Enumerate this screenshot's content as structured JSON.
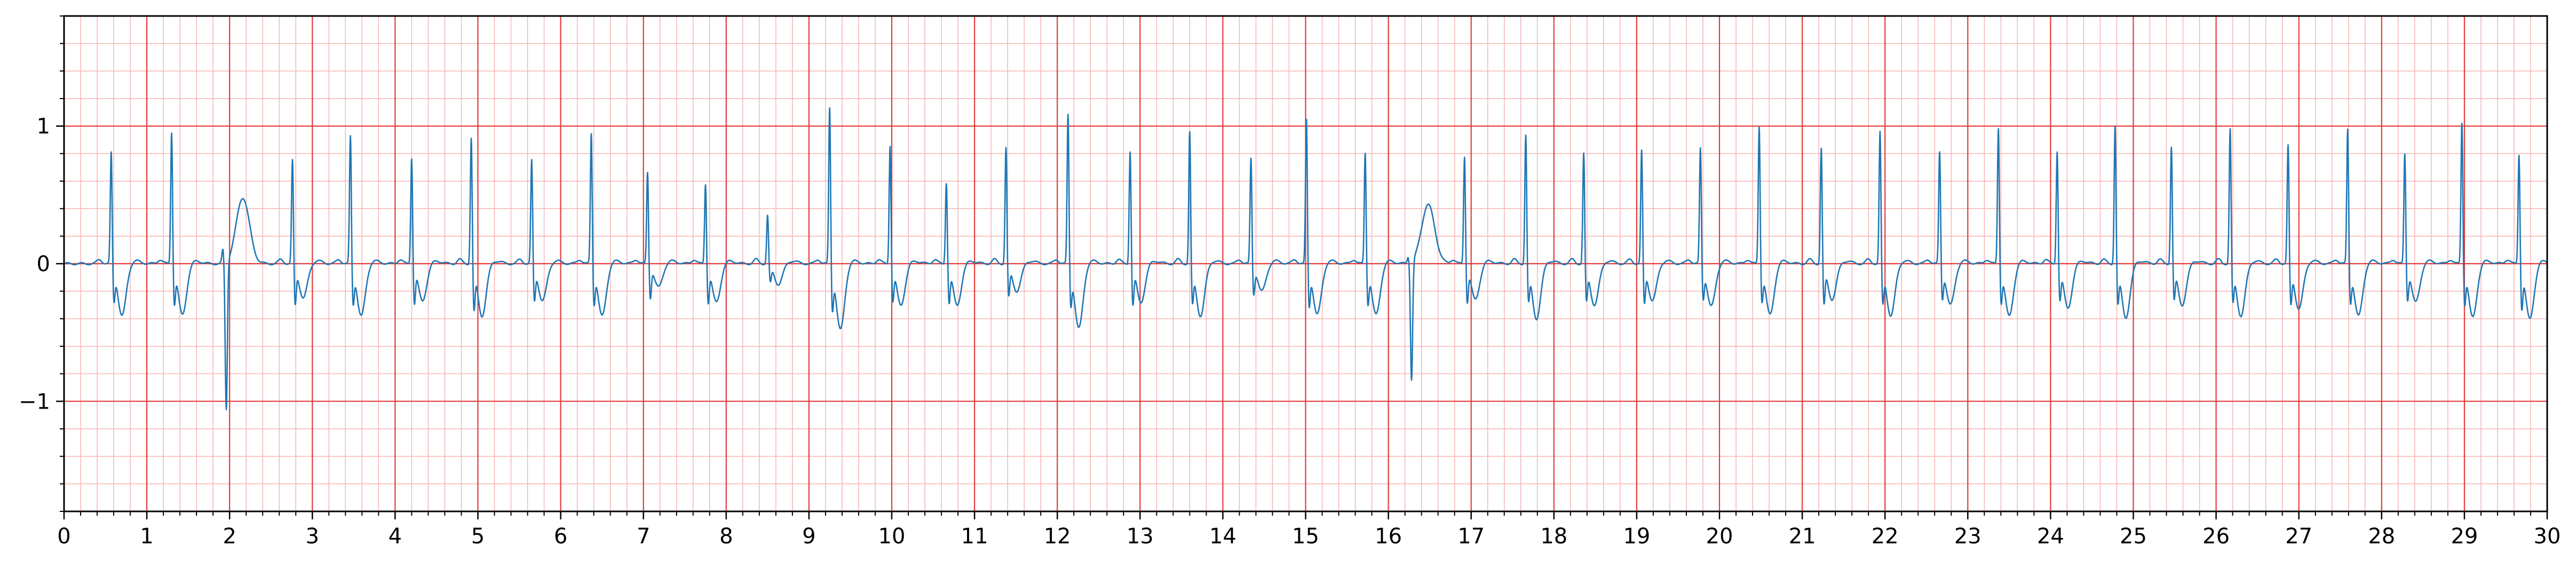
{
  "chart_data": {
    "type": "line",
    "title": "",
    "xlabel": "",
    "ylabel": "",
    "xlim": [
      0,
      30
    ],
    "ylim": [
      -1.8,
      1.8
    ],
    "x_ticks": [
      0,
      1,
      2,
      3,
      4,
      5,
      6,
      7,
      8,
      9,
      10,
      11,
      12,
      13,
      14,
      15,
      16,
      17,
      18,
      19,
      20,
      21,
      22,
      23,
      24,
      25,
      26,
      27,
      28,
      29,
      30
    ],
    "x_tick_labels": [
      "0",
      "1",
      "2",
      "3",
      "4",
      "5",
      "6",
      "7",
      "8",
      "9",
      "10",
      "11",
      "12",
      "13",
      "14",
      "15",
      "16",
      "17",
      "18",
      "19",
      "20",
      "21",
      "22",
      "23",
      "24",
      "25",
      "26",
      "27",
      "28",
      "29",
      "30"
    ],
    "y_ticks": [
      -1,
      0,
      1
    ],
    "y_tick_labels": [
      "−1",
      "0",
      "1"
    ],
    "grid": "on",
    "grid_major_x": 1.0,
    "grid_major_y": 1.0,
    "grid_minor_x": 0.2,
    "grid_minor_y": 0.2,
    "colors": {
      "trace": "#1f77b4",
      "major_grid": "#e33b3b",
      "minor_grid": "#f7b3b3",
      "axis": "#000000"
    },
    "special_beats": [
      {
        "r_time": 1.94,
        "r_peak": 0.1,
        "s_min": -1.08,
        "t_peak": 0.48
      },
      {
        "r_time": 16.26,
        "r_peak": 0.05,
        "s_min": -0.86,
        "t_peak": 0.43
      }
    ],
    "series": [
      {
        "r_peak_times": [
          0.57,
          1.3,
          2.76,
          3.46,
          4.2,
          4.92,
          5.65,
          6.37,
          7.05,
          7.75,
          8.5,
          9.25,
          9.98,
          10.66,
          11.38,
          12.13,
          12.88,
          13.6,
          14.34,
          15.01,
          15.72,
          16.92,
          17.66,
          18.36,
          19.06,
          19.77,
          20.48,
          21.23,
          21.94,
          22.66,
          23.37,
          24.08,
          24.78,
          25.46,
          26.17,
          26.87,
          27.59,
          28.28,
          28.97,
          29.66
        ],
        "r_peak_values": [
          0.85,
          1.0,
          0.79,
          0.97,
          0.81,
          0.96,
          0.79,
          0.99,
          0.7,
          0.62,
          0.38,
          1.18,
          0.9,
          0.63,
          0.88,
          1.13,
          0.86,
          1.0,
          0.8,
          1.09,
          0.85,
          0.82,
          0.98,
          0.84,
          0.86,
          0.88,
          1.04,
          0.88,
          1.0,
          0.85,
          1.03,
          0.86,
          1.05,
          0.89,
          1.02,
          0.9,
          1.02,
          0.84,
          1.07,
          0.84
        ],
        "s_min_values": [
          -0.23,
          -0.25,
          -0.27,
          -0.25,
          -0.26,
          -0.3,
          -0.24,
          -0.25,
          -0.23,
          -0.25,
          -0.12,
          -0.28,
          -0.24,
          -0.25,
          -0.22,
          -0.25,
          -0.27,
          -0.25,
          -0.2,
          -0.27,
          -0.25,
          -0.25,
          -0.23,
          -0.24,
          -0.26,
          -0.22,
          -0.23,
          -0.27,
          -0.25,
          -0.22,
          -0.24,
          -0.23,
          -0.25,
          -0.23,
          -0.24,
          -0.26,
          -0.24,
          -0.23,
          -0.25,
          -0.28
        ],
        "trough_values": [
          -0.38,
          -0.37,
          -0.25,
          -0.38,
          -0.27,
          -0.38,
          -0.27,
          -0.38,
          -0.17,
          -0.28,
          -0.15,
          -0.48,
          -0.3,
          -0.3,
          -0.2,
          -0.47,
          -0.28,
          -0.38,
          -0.2,
          -0.37,
          -0.37,
          -0.26,
          -0.4,
          -0.3,
          -0.27,
          -0.31,
          -0.37,
          -0.26,
          -0.38,
          -0.3,
          -0.38,
          -0.32,
          -0.39,
          -0.3,
          -0.38,
          -0.33,
          -0.38,
          -0.28,
          -0.39,
          -0.4
        ]
      }
    ]
  }
}
